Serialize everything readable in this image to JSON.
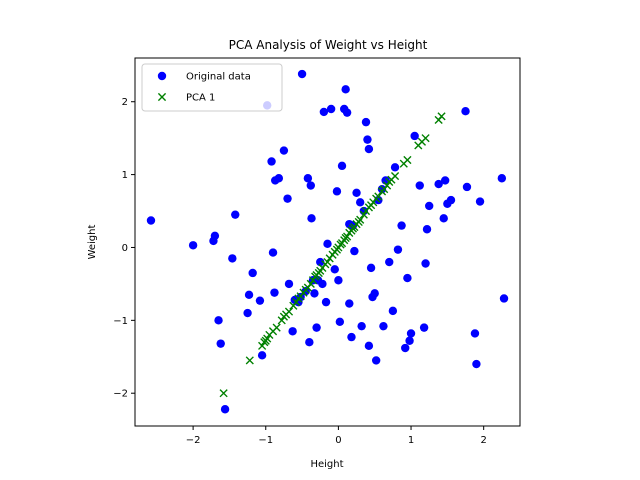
{
  "chart_data": {
    "type": "scatter",
    "title": "PCA Analysis of Weight vs Height",
    "xlabel": "Height",
    "ylabel": "Weight",
    "xlim": [
      -2.8,
      2.5
    ],
    "ylim": [
      -2.45,
      2.6
    ],
    "xticks": [
      -2,
      -1,
      0,
      1,
      2
    ],
    "yticks": [
      -2,
      -1,
      0,
      1,
      2
    ],
    "grid": false,
    "legend_position": "upper-left",
    "series": [
      {
        "name": "Original data",
        "marker": "circle",
        "color": "#0000ff",
        "points": [
          [
            -2.58,
            0.37
          ],
          [
            -2.0,
            0.03
          ],
          [
            -1.72,
            0.09
          ],
          [
            -1.7,
            0.16
          ],
          [
            -1.65,
            -1.0
          ],
          [
            -1.62,
            -1.32
          ],
          [
            -1.56,
            -2.22
          ],
          [
            -1.46,
            -0.15
          ],
          [
            -1.42,
            0.45
          ],
          [
            -1.25,
            -0.9
          ],
          [
            -1.23,
            -0.65
          ],
          [
            -1.18,
            -0.35
          ],
          [
            -1.08,
            -0.73
          ],
          [
            -1.05,
            -1.48
          ],
          [
            -0.98,
            1.95
          ],
          [
            -0.92,
            1.18
          ],
          [
            -0.9,
            -0.07
          ],
          [
            -0.88,
            -0.62
          ],
          [
            -0.87,
            0.92
          ],
          [
            -0.82,
            0.95
          ],
          [
            -0.75,
            1.33
          ],
          [
            -0.7,
            0.67
          ],
          [
            -0.68,
            -0.5
          ],
          [
            -0.63,
            -1.15
          ],
          [
            -0.6,
            -0.72
          ],
          [
            -0.55,
            -0.75
          ],
          [
            -0.52,
            -0.68
          ],
          [
            -0.5,
            2.38
          ],
          [
            -0.45,
            -0.6
          ],
          [
            -0.42,
            0.95
          ],
          [
            -0.4,
            -1.3
          ],
          [
            -0.38,
            0.85
          ],
          [
            -0.37,
            0.4
          ],
          [
            -0.35,
            -0.45
          ],
          [
            -0.33,
            -0.63
          ],
          [
            -0.3,
            -1.1
          ],
          [
            -0.28,
            -0.45
          ],
          [
            -0.25,
            -0.2
          ],
          [
            -0.22,
            -0.5
          ],
          [
            -0.2,
            1.86
          ],
          [
            -0.17,
            -0.75
          ],
          [
            -0.15,
            0.05
          ],
          [
            -0.1,
            1.9
          ],
          [
            -0.05,
            -0.3
          ],
          [
            -0.02,
            0.77
          ],
          [
            0.0,
            -0.45
          ],
          [
            0.02,
            -1.02
          ],
          [
            0.05,
            1.12
          ],
          [
            0.08,
            1.9
          ],
          [
            0.1,
            2.17
          ],
          [
            0.12,
            1.85
          ],
          [
            0.15,
            0.32
          ],
          [
            0.15,
            -0.77
          ],
          [
            0.18,
            -1.23
          ],
          [
            0.2,
            0.3
          ],
          [
            0.22,
            -0.05
          ],
          [
            0.25,
            0.75
          ],
          [
            0.3,
            0.62
          ],
          [
            0.32,
            -1.08
          ],
          [
            0.35,
            0.5
          ],
          [
            0.38,
            1.72
          ],
          [
            0.4,
            1.48
          ],
          [
            0.42,
            1.35
          ],
          [
            0.42,
            -1.35
          ],
          [
            0.45,
            -0.28
          ],
          [
            0.47,
            -0.68
          ],
          [
            0.5,
            -0.63
          ],
          [
            0.52,
            -1.55
          ],
          [
            0.55,
            0.65
          ],
          [
            0.6,
            0.8
          ],
          [
            0.62,
            -1.08
          ],
          [
            0.65,
            0.92
          ],
          [
            0.7,
            -0.2
          ],
          [
            0.75,
            -0.87
          ],
          [
            0.78,
            1.1
          ],
          [
            0.82,
            -0.03
          ],
          [
            0.87,
            0.3
          ],
          [
            0.92,
            -1.38
          ],
          [
            0.95,
            -0.42
          ],
          [
            0.98,
            -1.28
          ],
          [
            1.0,
            -1.18
          ],
          [
            1.05,
            1.53
          ],
          [
            1.12,
            0.85
          ],
          [
            1.18,
            -1.1
          ],
          [
            1.2,
            -0.22
          ],
          [
            1.22,
            0.25
          ],
          [
            1.25,
            0.57
          ],
          [
            1.38,
            0.87
          ],
          [
            1.45,
            0.4
          ],
          [
            1.47,
            0.92
          ],
          [
            1.5,
            0.6
          ],
          [
            1.55,
            0.65
          ],
          [
            1.75,
            1.87
          ],
          [
            1.77,
            0.83
          ],
          [
            1.88,
            -1.18
          ],
          [
            1.9,
            -1.6
          ],
          [
            1.95,
            0.63
          ],
          [
            2.25,
            0.95
          ],
          [
            2.28,
            -0.7
          ]
        ]
      },
      {
        "name": "PCA 1",
        "marker": "x",
        "color": "#008000",
        "points": [
          [
            -1.58,
            -2.0
          ],
          [
            -1.22,
            -1.55
          ],
          [
            -1.05,
            -1.35
          ],
          [
            -1.02,
            -1.3
          ],
          [
            -1.0,
            -1.28
          ],
          [
            -0.98,
            -1.25
          ],
          [
            -0.95,
            -1.2
          ],
          [
            -0.9,
            -1.15
          ],
          [
            -0.85,
            -1.1
          ],
          [
            -0.78,
            -1.0
          ],
          [
            -0.75,
            -0.95
          ],
          [
            -0.72,
            -0.92
          ],
          [
            -0.68,
            -0.88
          ],
          [
            -0.62,
            -0.8
          ],
          [
            -0.58,
            -0.75
          ],
          [
            -0.55,
            -0.7
          ],
          [
            -0.52,
            -0.67
          ],
          [
            -0.48,
            -0.62
          ],
          [
            -0.45,
            -0.58
          ],
          [
            -0.42,
            -0.55
          ],
          [
            -0.38,
            -0.5
          ],
          [
            -0.35,
            -0.45
          ],
          [
            -0.32,
            -0.4
          ],
          [
            -0.3,
            -0.38
          ],
          [
            -0.27,
            -0.35
          ],
          [
            -0.25,
            -0.32
          ],
          [
            -0.22,
            -0.28
          ],
          [
            -0.18,
            -0.23
          ],
          [
            -0.15,
            -0.2
          ],
          [
            -0.12,
            -0.15
          ],
          [
            -0.08,
            -0.1
          ],
          [
            -0.05,
            -0.06
          ],
          [
            -0.02,
            -0.03
          ],
          [
            0.0,
            0.0
          ],
          [
            0.03,
            0.04
          ],
          [
            0.05,
            0.06
          ],
          [
            0.08,
            0.1
          ],
          [
            0.1,
            0.13
          ],
          [
            0.12,
            0.15
          ],
          [
            0.15,
            0.2
          ],
          [
            0.18,
            0.23
          ],
          [
            0.2,
            0.26
          ],
          [
            0.22,
            0.28
          ],
          [
            0.25,
            0.32
          ],
          [
            0.28,
            0.35
          ],
          [
            0.3,
            0.38
          ],
          [
            0.35,
            0.45
          ],
          [
            0.38,
            0.5
          ],
          [
            0.42,
            0.55
          ],
          [
            0.45,
            0.58
          ],
          [
            0.48,
            0.62
          ],
          [
            0.52,
            0.67
          ],
          [
            0.55,
            0.7
          ],
          [
            0.6,
            0.77
          ],
          [
            0.63,
            0.8
          ],
          [
            0.67,
            0.85
          ],
          [
            0.7,
            0.9
          ],
          [
            0.73,
            0.93
          ],
          [
            0.78,
            0.98
          ],
          [
            0.9,
            1.15
          ],
          [
            0.95,
            1.2
          ],
          [
            1.1,
            1.4
          ],
          [
            1.15,
            1.45
          ],
          [
            1.2,
            1.5
          ],
          [
            1.38,
            1.75
          ],
          [
            1.42,
            1.8
          ]
        ]
      }
    ]
  }
}
